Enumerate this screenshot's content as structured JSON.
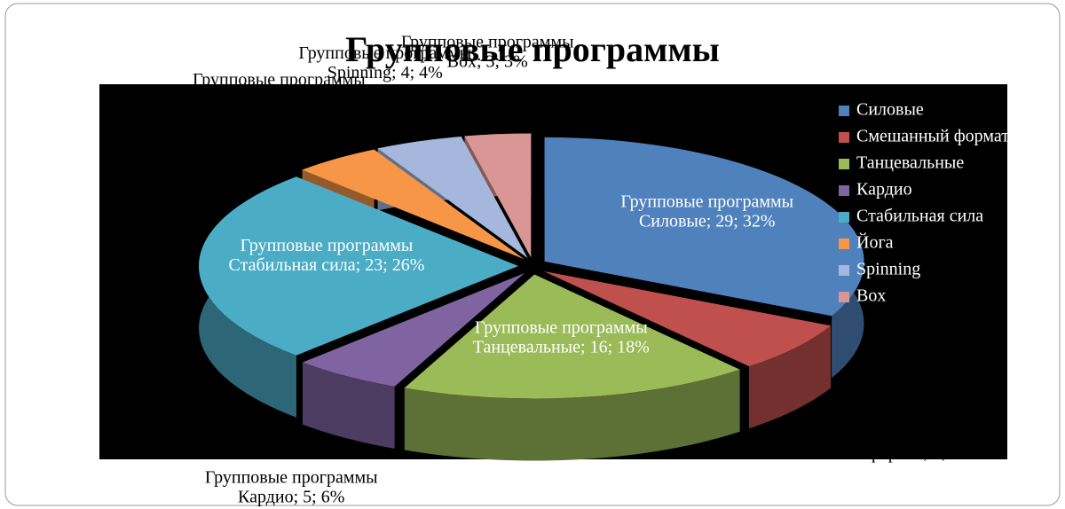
{
  "chart_data": {
    "type": "pie3d",
    "title": "Групповые программы",
    "series_name": "Групповые программы",
    "categories": [
      "Силовые",
      "Смешанный формат",
      "Танцевальные",
      "Кардио",
      "Стабильная сила",
      "Йога",
      "Spinning",
      "Box"
    ],
    "values": [
      29,
      6,
      16,
      5,
      23,
      4,
      4,
      3
    ],
    "percents": [
      32,
      7,
      18,
      6,
      26,
      4,
      4,
      3
    ],
    "colors": [
      "#4f81bd",
      "#c0504d",
      "#9bbb59",
      "#8064a2",
      "#4bacc6",
      "#f79646",
      "#a5b7dc",
      "#d99694"
    ],
    "legend": "right"
  }
}
